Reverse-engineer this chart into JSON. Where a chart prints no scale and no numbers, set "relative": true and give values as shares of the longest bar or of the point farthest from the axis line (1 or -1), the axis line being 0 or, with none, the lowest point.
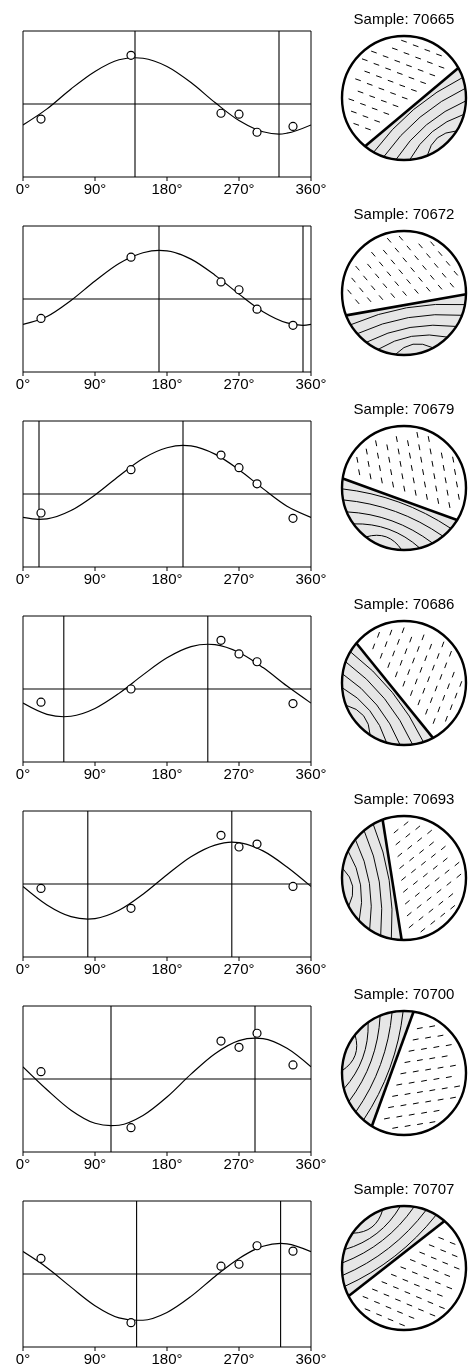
{
  "chart_data": [
    {
      "type": "scatter",
      "relative": true,
      "annotations": [
        "Sample: 70665"
      ],
      "xlim": [
        0,
        360
      ],
      "xticks": [
        {
          "value": 0,
          "label": "0°"
        },
        {
          "value": 90,
          "label": "90°"
        },
        {
          "value": 180,
          "label": "180°"
        },
        {
          "value": 270,
          "label": "270°"
        },
        {
          "value": 360,
          "label": "360°"
        }
      ],
      "marker": "circle",
      "series": [
        {
          "type": "scatter",
          "color": "#000000",
          "x": [
            22.5,
            135,
            247.5,
            270,
            292.5,
            337.5
          ],
          "values": [
            -0.31,
            1.0,
            -0.19,
            -0.21,
            -0.58,
            -0.46
          ]
        },
        {
          "type": "line",
          "marker": "none",
          "color": "#000000",
          "x": [
            0,
            30,
            60,
            90,
            120,
            140,
            150,
            180,
            210,
            240,
            270,
            300,
            320,
            330,
            360
          ],
          "values": [
            -0.43,
            -0.1,
            0.31,
            0.67,
            0.91,
            0.95,
            0.94,
            0.77,
            0.44,
            0.03,
            -0.34,
            -0.57,
            -0.62,
            -0.6,
            -0.43
          ]
        }
      ],
      "ref_lines": [
        {
          "axis": "y",
          "value": 0
        },
        {
          "axis": "x",
          "value": 140
        },
        {
          "axis": "x",
          "value": 320
        }
      ]
    },
    {
      "type": "scatter",
      "relative": true,
      "annotations": [
        "Sample: 70672"
      ],
      "xlim": [
        0,
        360
      ],
      "xticks": [
        {
          "value": 0,
          "label": "0°"
        },
        {
          "value": 90,
          "label": "90°"
        },
        {
          "value": 180,
          "label": "180°"
        },
        {
          "value": 270,
          "label": "270°"
        },
        {
          "value": 360,
          "label": "360°"
        }
      ],
      "marker": "circle",
      "series": [
        {
          "type": "scatter",
          "color": "#000000",
          "x": [
            22.5,
            135,
            247.5,
            270,
            292.5,
            337.5
          ],
          "values": [
            -0.4,
            0.86,
            0.35,
            0.19,
            -0.21,
            -0.54
          ]
        },
        {
          "type": "line",
          "marker": "none",
          "color": "#000000",
          "x": [
            0,
            30,
            60,
            90,
            120,
            150,
            170,
            180,
            210,
            240,
            270,
            300,
            330,
            350,
            360
          ],
          "values": [
            -0.52,
            -0.36,
            -0.03,
            0.37,
            0.73,
            0.95,
            1.0,
            0.99,
            0.82,
            0.49,
            0.1,
            -0.26,
            -0.49,
            -0.54,
            -0.52
          ]
        }
      ],
      "ref_lines": [
        {
          "axis": "y",
          "value": 0
        },
        {
          "axis": "x",
          "value": 170
        },
        {
          "axis": "x",
          "value": 350
        }
      ]
    },
    {
      "type": "scatter",
      "relative": true,
      "annotations": [
        "Sample: 70679"
      ],
      "xlim": [
        0,
        360
      ],
      "xticks": [
        {
          "value": 0,
          "label": "0°"
        },
        {
          "value": 90,
          "label": "90°"
        },
        {
          "value": 180,
          "label": "180°"
        },
        {
          "value": 270,
          "label": "270°"
        },
        {
          "value": 360,
          "label": "360°"
        }
      ],
      "marker": "circle",
      "series": [
        {
          "type": "scatter",
          "color": "#000000",
          "x": [
            22.5,
            135,
            247.5,
            270,
            292.5,
            337.5
          ],
          "values": [
            -0.39,
            0.5,
            0.8,
            0.54,
            0.21,
            -0.5
          ]
        },
        {
          "type": "line",
          "marker": "none",
          "color": "#000000",
          "x": [
            0,
            20,
            30,
            60,
            90,
            120,
            150,
            180,
            200,
            210,
            240,
            270,
            300,
            330,
            360
          ],
          "values": [
            -0.48,
            -0.52,
            -0.51,
            -0.34,
            -0.02,
            0.37,
            0.73,
            0.95,
            1.0,
            0.99,
            0.82,
            0.5,
            0.11,
            -0.25,
            -0.48
          ]
        }
      ],
      "ref_lines": [
        {
          "axis": "y",
          "value": 0
        },
        {
          "axis": "x",
          "value": 20
        },
        {
          "axis": "x",
          "value": 200
        }
      ]
    },
    {
      "type": "scatter",
      "relative": true,
      "annotations": [
        "Sample: 70686"
      ],
      "xlim": [
        0,
        360
      ],
      "xticks": [
        {
          "value": 0,
          "label": "0°"
        },
        {
          "value": 90,
          "label": "90°"
        },
        {
          "value": 180,
          "label": "180°"
        },
        {
          "value": 270,
          "label": "270°"
        },
        {
          "value": 360,
          "label": "360°"
        }
      ],
      "marker": "circle",
      "series": [
        {
          "type": "scatter",
          "color": "#000000",
          "x": [
            22.5,
            135,
            247.5,
            270,
            292.5,
            337.5
          ],
          "values": [
            -0.27,
            0,
            1.0,
            0.72,
            0.56,
            -0.3
          ]
        },
        {
          "type": "line",
          "marker": "none",
          "color": "#000000",
          "x": [
            0,
            30,
            51,
            60,
            90,
            120,
            150,
            180,
            210,
            231,
            240,
            270,
            300,
            330,
            360
          ],
          "values": [
            -0.29,
            -0.52,
            -0.57,
            -0.56,
            -0.4,
            -0.09,
            0.29,
            0.64,
            0.87,
            0.92,
            0.91,
            0.75,
            0.44,
            0.06,
            -0.29
          ]
        }
      ],
      "ref_lines": [
        {
          "axis": "y",
          "value": 0
        },
        {
          "axis": "x",
          "value": 51
        },
        {
          "axis": "x",
          "value": 231
        }
      ]
    },
    {
      "type": "scatter",
      "relative": true,
      "annotations": [
        "Sample: 70693"
      ],
      "xlim": [
        0,
        360
      ],
      "xticks": [
        {
          "value": 0,
          "label": "0°"
        },
        {
          "value": 90,
          "label": "90°"
        },
        {
          "value": 180,
          "label": "180°"
        },
        {
          "value": 270,
          "label": "270°"
        },
        {
          "value": 360,
          "label": "360°"
        }
      ],
      "marker": "circle",
      "series": [
        {
          "type": "scatter",
          "color": "#000000",
          "x": [
            22.5,
            135,
            247.5,
            270,
            292.5,
            337.5
          ],
          "values": [
            -0.09,
            -0.5,
            1.0,
            0.76,
            0.82,
            -0.05
          ]
        },
        {
          "type": "line",
          "marker": "none",
          "color": "#000000",
          "x": [
            0,
            30,
            60,
            81,
            90,
            120,
            150,
            180,
            210,
            240,
            261,
            270,
            300,
            330,
            360
          ],
          "values": [
            -0.05,
            -0.43,
            -0.67,
            -0.72,
            -0.71,
            -0.54,
            -0.21,
            0.19,
            0.56,
            0.8,
            0.86,
            0.85,
            0.68,
            0.35,
            -0.05
          ]
        }
      ],
      "ref_lines": [
        {
          "axis": "y",
          "value": 0
        },
        {
          "axis": "x",
          "value": 81
        },
        {
          "axis": "x",
          "value": 261
        }
      ]
    },
    {
      "type": "scatter",
      "relative": true,
      "annotations": [
        "Sample: 70700"
      ],
      "xlim": [
        0,
        360
      ],
      "xticks": [
        {
          "value": 0,
          "label": "0°"
        },
        {
          "value": 90,
          "label": "90°"
        },
        {
          "value": 180,
          "label": "180°"
        },
        {
          "value": 270,
          "label": "270°"
        },
        {
          "value": 360,
          "label": "360°"
        }
      ],
      "marker": "circle",
      "series": [
        {
          "type": "scatter",
          "color": "#000000",
          "x": [
            22.5,
            135,
            247.5,
            270,
            292.5,
            337.5
          ],
          "values": [
            0.15,
            -1.0,
            0.78,
            0.65,
            0.94,
            0.29
          ]
        },
        {
          "type": "line",
          "marker": "none",
          "color": "#000000",
          "x": [
            0,
            30,
            60,
            90,
            110,
            120,
            150,
            180,
            210,
            240,
            270,
            290,
            300,
            330,
            360
          ],
          "values": [
            0.25,
            -0.22,
            -0.64,
            -0.91,
            -0.96,
            -0.95,
            -0.75,
            -0.37,
            0.1,
            0.52,
            0.79,
            0.84,
            0.83,
            0.63,
            0.25
          ]
        }
      ],
      "ref_lines": [
        {
          "axis": "y",
          "value": 0
        },
        {
          "axis": "x",
          "value": 110
        },
        {
          "axis": "x",
          "value": 290
        }
      ]
    },
    {
      "type": "scatter",
      "relative": true,
      "annotations": [
        "Sample: 70707"
      ],
      "xlim": [
        0,
        360
      ],
      "xticks": [
        {
          "value": 0,
          "label": "0°"
        },
        {
          "value": 90,
          "label": "90°"
        },
        {
          "value": 180,
          "label": "180°"
        },
        {
          "value": 270,
          "label": "270°"
        },
        {
          "value": 360,
          "label": "360°"
        }
      ],
      "marker": "circle",
      "series": [
        {
          "type": "scatter",
          "color": "#000000",
          "x": [
            22.5,
            135,
            247.5,
            270,
            292.5,
            337.5
          ],
          "values": [
            0.32,
            -1.0,
            0.16,
            0.2,
            0.58,
            0.47
          ]
        },
        {
          "type": "line",
          "marker": "none",
          "color": "#000000",
          "x": [
            0,
            30,
            60,
            90,
            120,
            142,
            150,
            180,
            210,
            240,
            270,
            300,
            322,
            330,
            360
          ],
          "values": [
            0.46,
            0.13,
            -0.27,
            -0.65,
            -0.9,
            -0.95,
            -0.95,
            -0.79,
            -0.46,
            -0.05,
            0.32,
            0.57,
            0.63,
            0.62,
            0.46
          ]
        }
      ],
      "ref_lines": [
        {
          "axis": "y",
          "value": 0
        },
        {
          "axis": "x",
          "value": 142
        },
        {
          "axis": "x",
          "value": 322
        }
      ]
    }
  ]
}
